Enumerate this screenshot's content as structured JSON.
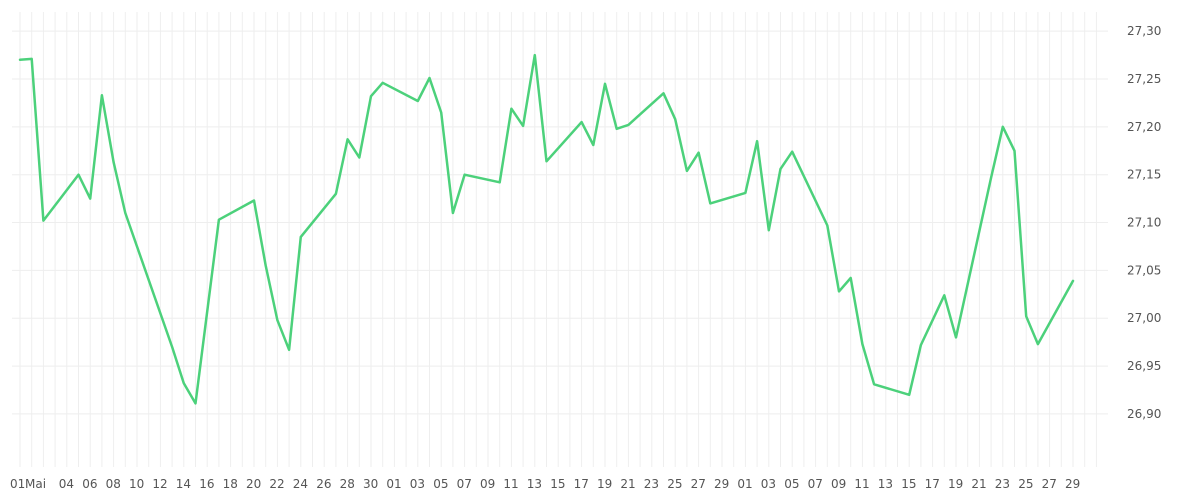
{
  "chart_data": {
    "type": "line",
    "title": "",
    "xlabel": "",
    "ylabel": "",
    "ylim": [
      26.855,
      27.32
    ],
    "y_ticks": [
      "26,90",
      "26,95",
      "27,00",
      "27,05",
      "27,10",
      "27,15",
      "27,20",
      "27,25",
      "27,30"
    ],
    "y_tick_values": [
      26.9,
      26.95,
      27.0,
      27.05,
      27.1,
      27.15,
      27.2,
      27.25,
      27.3
    ],
    "x_tick_labels": [
      "01",
      "Mai",
      "04",
      "06",
      "08",
      "10",
      "12",
      "14",
      "16",
      "18",
      "20",
      "22",
      "24",
      "26",
      "28",
      "30",
      "01",
      "03",
      "05",
      "07",
      "09",
      "11",
      "13",
      "15",
      "17",
      "19",
      "21",
      "23",
      "25",
      "27",
      "29",
      "01",
      "03",
      "05",
      "07",
      "09",
      "11",
      "13",
      "15",
      "17",
      "19",
      "21",
      "23",
      "25",
      "27",
      "29"
    ],
    "grid": true,
    "line_color": "#4cd17b",
    "grid_color": "#eeeeee",
    "series": [
      {
        "values": [
          [
            0,
            27.27
          ],
          [
            1,
            27.271
          ],
          [
            2,
            27.102
          ],
          [
            5,
            27.15
          ],
          [
            6,
            27.125
          ],
          [
            7,
            27.233
          ],
          [
            8,
            27.163
          ],
          [
            9,
            27.11
          ],
          [
            13,
            26.97
          ],
          [
            14,
            26.932
          ],
          [
            15,
            26.911
          ],
          [
            17,
            27.103
          ],
          [
            20,
            27.123
          ],
          [
            21,
            27.055
          ],
          [
            22,
            26.998
          ],
          [
            23,
            26.967
          ],
          [
            24,
            27.085
          ],
          [
            27,
            27.13
          ],
          [
            28,
            27.187
          ],
          [
            29,
            27.168
          ],
          [
            30,
            27.232
          ],
          [
            31,
            27.246
          ],
          [
            34,
            27.227
          ],
          [
            35,
            27.251
          ],
          [
            36,
            27.215
          ],
          [
            37,
            27.11
          ],
          [
            38,
            27.15
          ],
          [
            41,
            27.142
          ],
          [
            42,
            27.219
          ],
          [
            43,
            27.201
          ],
          [
            44,
            27.275
          ],
          [
            45,
            27.164
          ],
          [
            48,
            27.205
          ],
          [
            49,
            27.181
          ],
          [
            50,
            27.245
          ],
          [
            51,
            27.198
          ],
          [
            52,
            27.202
          ],
          [
            55,
            27.235
          ],
          [
            56,
            27.208
          ],
          [
            57,
            27.154
          ],
          [
            58,
            27.173
          ],
          [
            59,
            27.12
          ],
          [
            62,
            27.131
          ],
          [
            63,
            27.185
          ],
          [
            64,
            27.092
          ],
          [
            65,
            27.156
          ],
          [
            66,
            27.174
          ],
          [
            69,
            27.097
          ],
          [
            70,
            27.028
          ],
          [
            71,
            27.042
          ],
          [
            72,
            26.973
          ],
          [
            73,
            26.931
          ],
          [
            76,
            26.92
          ],
          [
            77,
            26.972
          ],
          [
            79,
            27.024
          ],
          [
            80,
            26.98
          ],
          [
            83,
            27.147
          ],
          [
            84,
            27.2
          ],
          [
            85,
            27.175
          ],
          [
            86,
            27.002
          ],
          [
            87,
            26.973
          ],
          [
            90,
            27.039
          ]
        ]
      }
    ]
  }
}
